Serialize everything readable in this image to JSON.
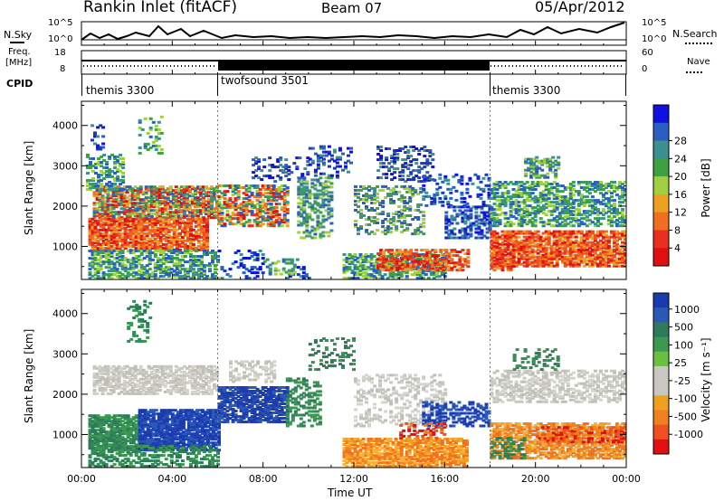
{
  "header": {
    "station": "Rankin Inlet (fitACF)",
    "beam": "Beam 07",
    "date": "05/Apr/2012"
  },
  "summary": {
    "nsky_label": "N.Sky",
    "nsearch_label": "N.Search",
    "count_ticks": [
      "10^5",
      "10^0"
    ],
    "freq_label_1": "Freq.",
    "freq_label_2": "[MHz]",
    "freq_ticks": [
      "18",
      "8"
    ],
    "nave_label": "Nave",
    "nave_ticks": [
      "60",
      "0"
    ],
    "cpid_label": "CPID",
    "cpid_segments": [
      {
        "name": "themis 3300",
        "start_hour": 0,
        "end_hour": 6
      },
      {
        "name": "twofsound 3501",
        "start_hour": 6,
        "end_hour": 18
      },
      {
        "name": "themis 3300",
        "start_hour": 18,
        "end_hour": 24
      }
    ]
  },
  "chart_data": [
    {
      "type": "heatmap",
      "parameter": "power",
      "ylabel": "Slant Range [km]",
      "y_ticks": [
        1000,
        2000,
        3000,
        4000
      ],
      "ylim": [
        180,
        4600
      ],
      "xlim": [
        0,
        24
      ],
      "colorbar_label": "Power [dB]",
      "colorbar_ticks": [
        4,
        8,
        12,
        16,
        20,
        24,
        28
      ],
      "colorbar_colors": [
        "#1010e0",
        "#2a5ec0",
        "#3c9090",
        "#3fa040",
        "#a0d040",
        "#f0a020",
        "#f07020",
        "#e83020",
        "#e01010"
      ]
    },
    {
      "type": "heatmap",
      "parameter": "velocity",
      "ylabel": "Slant Range [km]",
      "y_ticks": [
        1000,
        2000,
        3000,
        4000
      ],
      "ylim": [
        180,
        4600
      ],
      "xlim": [
        0,
        24
      ],
      "colorbar_label": "Velocity [m s⁻¹]",
      "colorbar_ticks": [
        "1000",
        "500",
        "100",
        "25",
        "-25",
        "-100",
        "-500",
        "-1000"
      ],
      "colorbar_colors": [
        "#1a3ab0",
        "#2a5ab8",
        "#2e7a5a",
        "#3c9a50",
        "#6ac040",
        "#c8c8c0",
        "#c8c8c0",
        "#f0a020",
        "#f08020",
        "#f05020",
        "#e01010"
      ]
    }
  ],
  "x_axis": {
    "label": "Time UT",
    "ticks": [
      "00:00",
      "04:00",
      "08:00",
      "12:00",
      "16:00",
      "20:00",
      "00:00"
    ]
  }
}
